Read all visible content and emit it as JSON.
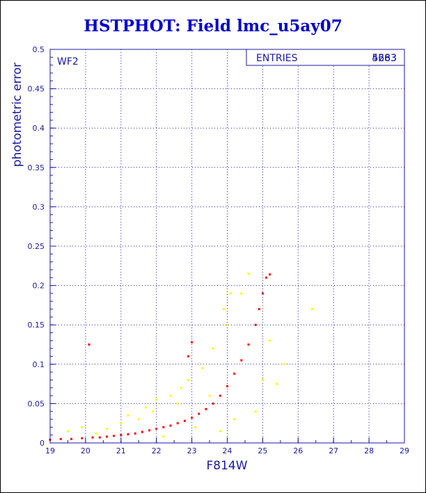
{
  "title": "HSTPHOT: Field lmc_u5ay07",
  "chart_data": {
    "type": "scatter",
    "xlabel": "F814W",
    "ylabel": "photometric error",
    "xlim": [
      19,
      29
    ],
    "ylim": [
      0,
      0.5
    ],
    "xticks": [
      "19",
      "20",
      "21",
      "22",
      "23",
      "24",
      "25",
      "26",
      "27",
      "28",
      "29"
    ],
    "yticks": [
      "0",
      "0.05",
      "0.1",
      "0.15",
      "0.2",
      "0.25",
      "0.3",
      "0.35",
      "0.4",
      "0.45",
      "0.5"
    ],
    "grid": true,
    "panel_label": "WF2",
    "stats_box": {
      "label": "ENTRIES",
      "values": [
        "5263",
        "4683"
      ]
    },
    "colors": {
      "series_red": "#ff0000",
      "series_yellow": "#ffff00",
      "axis": "#1a1aa0"
    },
    "series": [
      {
        "color": "red",
        "points": [
          [
            19.0,
            0.004
          ],
          [
            19.3,
            0.005
          ],
          [
            19.6,
            0.005
          ],
          [
            19.9,
            0.006
          ],
          [
            20.2,
            0.007
          ],
          [
            20.4,
            0.007
          ],
          [
            20.6,
            0.008
          ],
          [
            20.8,
            0.009
          ],
          [
            21.0,
            0.01
          ],
          [
            21.2,
            0.011
          ],
          [
            21.4,
            0.012
          ],
          [
            21.6,
            0.014
          ],
          [
            21.8,
            0.016
          ],
          [
            22.0,
            0.018
          ],
          [
            22.2,
            0.02
          ],
          [
            22.4,
            0.022
          ],
          [
            22.6,
            0.025
          ],
          [
            22.8,
            0.028
          ],
          [
            23.0,
            0.032
          ],
          [
            23.2,
            0.037
          ],
          [
            23.4,
            0.043
          ],
          [
            23.6,
            0.05
          ],
          [
            23.8,
            0.06
          ],
          [
            24.0,
            0.072
          ],
          [
            24.2,
            0.088
          ],
          [
            24.4,
            0.105
          ],
          [
            24.6,
            0.125
          ],
          [
            24.8,
            0.15
          ],
          [
            24.9,
            0.17
          ],
          [
            25.0,
            0.19
          ],
          [
            25.1,
            0.21
          ],
          [
            25.2,
            0.214
          ],
          [
            20.1,
            0.125
          ],
          [
            23.0,
            0.128
          ],
          [
            22.9,
            0.11
          ]
        ]
      },
      {
        "color": "yellow",
        "points": [
          [
            19.5,
            0.015
          ],
          [
            19.9,
            0.02
          ],
          [
            20.3,
            0.012
          ],
          [
            20.6,
            0.018
          ],
          [
            21.0,
            0.025
          ],
          [
            21.2,
            0.035
          ],
          [
            21.5,
            0.03
          ],
          [
            21.7,
            0.045
          ],
          [
            21.9,
            0.04
          ],
          [
            22.0,
            0.055
          ],
          [
            22.2,
            0.008
          ],
          [
            22.4,
            0.06
          ],
          [
            22.6,
            0.05
          ],
          [
            22.7,
            0.07
          ],
          [
            22.9,
            0.08
          ],
          [
            23.1,
            0.02
          ],
          [
            23.3,
            0.095
          ],
          [
            23.5,
            0.06
          ],
          [
            23.6,
            0.12
          ],
          [
            23.8,
            0.015
          ],
          [
            24.0,
            0.15
          ],
          [
            24.2,
            0.03
          ],
          [
            24.4,
            0.19
          ],
          [
            24.6,
            0.215
          ],
          [
            24.8,
            0.04
          ],
          [
            25.0,
            0.08
          ],
          [
            25.2,
            0.13
          ],
          [
            25.4,
            0.075
          ],
          [
            25.6,
            0.1
          ],
          [
            26.4,
            0.17
          ],
          [
            24.1,
            0.19
          ],
          [
            23.9,
            0.17
          ]
        ]
      }
    ]
  }
}
